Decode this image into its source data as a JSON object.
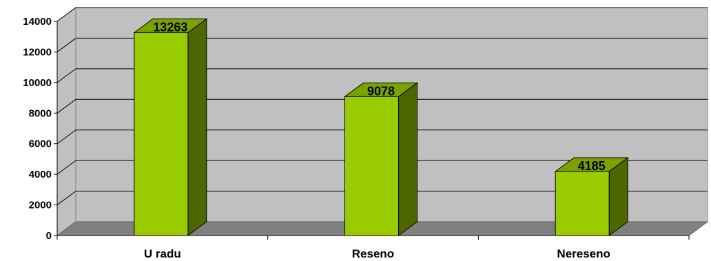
{
  "chart_data": {
    "type": "bar",
    "style": "3d-column",
    "categories": [
      "U radu",
      "Reseno",
      "Nereseno"
    ],
    "values": [
      13263,
      9078,
      4185
    ],
    "title": "",
    "xlabel": "",
    "ylabel": "",
    "ylim": [
      0,
      14000
    ],
    "yticks": [
      0,
      2000,
      4000,
      6000,
      8000,
      10000,
      12000,
      14000
    ],
    "grid": true,
    "legend": "none",
    "data_labels": [
      "13263",
      "9078",
      "4185"
    ],
    "colors": {
      "bar_front": "#99cc00",
      "bar_side": "#4c6600",
      "bar_top": "#7aa300",
      "wall": "#c0c0c0",
      "floor": "#808080",
      "gridline": "#000000"
    }
  }
}
